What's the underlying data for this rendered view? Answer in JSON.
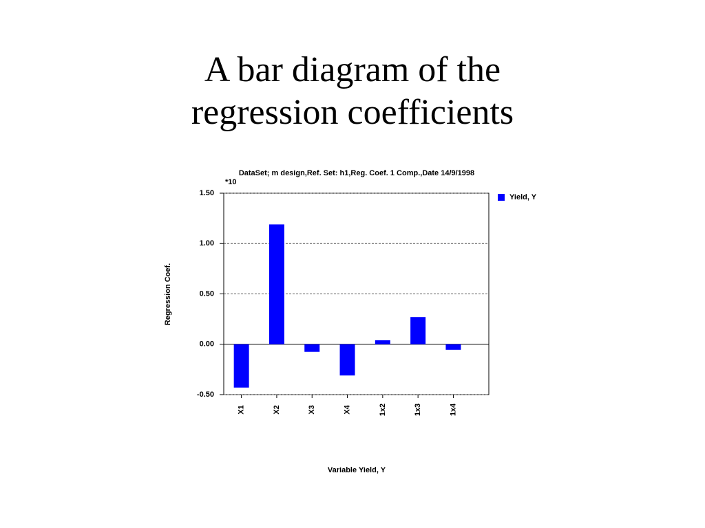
{
  "slide_title": "A bar diagram of the regression coefficients",
  "chart_data": {
    "type": "bar",
    "title": "DataSet; m design,Ref. Set: h1,Reg. Coef. 1 Comp.,Date 14/9/1998",
    "y_multiplier": "*10",
    "y_label": "Regression Coef.",
    "x_label": "Variable Yield, Y",
    "categories": [
      "X1",
      "X2",
      "X3",
      "X4",
      "1x2",
      "1x3",
      "1x4"
    ],
    "series": [
      {
        "name": "Yield, Y",
        "color": "#0000ff",
        "values": [
          -0.43,
          1.19,
          -0.075,
          -0.31,
          0.04,
          0.27,
          -0.055
        ]
      }
    ],
    "ylim": [
      -0.5,
      1.5
    ],
    "yticks": [
      {
        "value": -0.5,
        "label": "-0.50"
      },
      {
        "value": 0,
        "label": "0.00"
      },
      {
        "value": 0.5,
        "label": "0.50"
      },
      {
        "value": 1,
        "label": "1.00"
      },
      {
        "value": 1.5,
        "label": "1.50"
      }
    ],
    "grid": true,
    "legend": "right"
  }
}
